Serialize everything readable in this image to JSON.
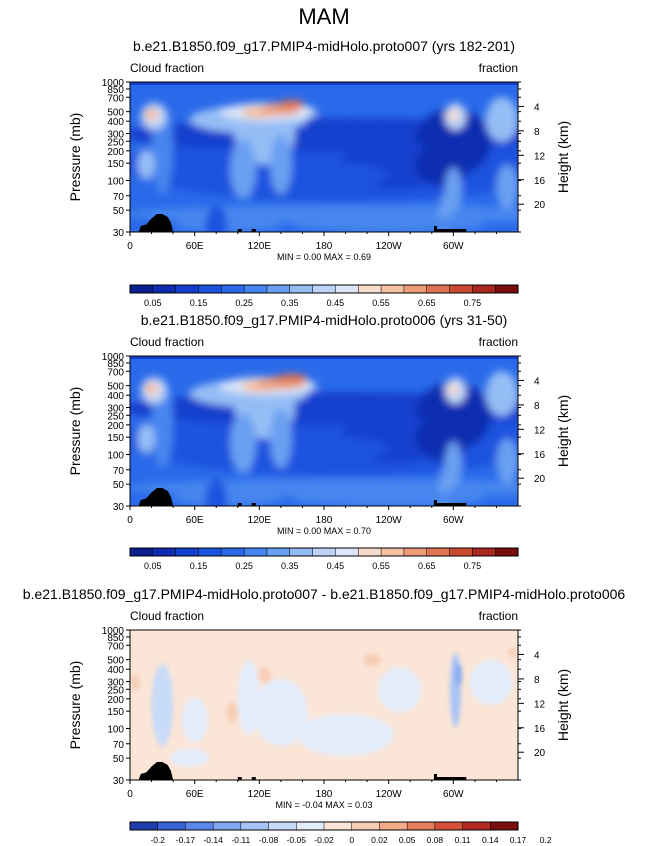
{
  "page_title": "MAM",
  "colors": {
    "cloud_levels": [
      "#0a1f8f",
      "#0d2db0",
      "#133fce",
      "#1b53df",
      "#2a6aea",
      "#4786ef",
      "#6aa0f2",
      "#95bdf5",
      "#bcd3f7",
      "#dbe6f8",
      "#f7dccb",
      "#f4c0a0",
      "#ee9b77",
      "#e17455",
      "#cc4a32",
      "#a9271d",
      "#7a0d0d"
    ],
    "diff_levels": [
      "#1f3fae",
      "#3a62d8",
      "#5c87ea",
      "#83a8f2",
      "#a7c3f6",
      "#c7dbf8",
      "#e2ecfb",
      "#fbe5d6",
      "#f7ccb3",
      "#f2aa88",
      "#e77f5e",
      "#d45239",
      "#b32a20",
      "#7a0d0d"
    ],
    "terrain": "#000000",
    "diff_background": "#fbe5d6"
  },
  "chart_data": [
    {
      "type": "heatmap",
      "title": "b.e21.B1850.f09_g17.PMIP4-midHolo.proto007 (yrs 182-201)",
      "left_label": "Cloud fraction",
      "right_label": "fraction",
      "ylabel": "Pressure (mb)",
      "ylabel_right": "Height (km)",
      "y_ticks": [
        "30",
        "50",
        "70",
        "100",
        "150",
        "200",
        "250",
        "300",
        "400",
        "500",
        "700",
        "850",
        "1000"
      ],
      "y_ticks_right": [
        "20",
        "16",
        "12",
        "8",
        "4"
      ],
      "x_ticks": [
        "0",
        "60E",
        "120E",
        "180",
        "120W",
        "60W"
      ],
      "stats": "MIN =   0.00  MAX =   0.69",
      "colorbar_labels": [
        "0.05",
        "0.15",
        "0.25",
        "0.35",
        "0.45",
        "0.55",
        "0.65",
        "0.75"
      ],
      "min": 0.0,
      "max": 0.69
    },
    {
      "type": "heatmap",
      "title": "b.e21.B1850.f09_g17.PMIP4-midHolo.proto006 (yrs 31-50)",
      "left_label": "Cloud fraction",
      "right_label": "fraction",
      "ylabel": "Pressure (mb)",
      "ylabel_right": "Height (km)",
      "y_ticks": [
        "30",
        "50",
        "70",
        "100",
        "150",
        "200",
        "250",
        "300",
        "400",
        "500",
        "700",
        "850",
        "1000"
      ],
      "y_ticks_right": [
        "20",
        "16",
        "12",
        "8",
        "4"
      ],
      "x_ticks": [
        "0",
        "60E",
        "120E",
        "180",
        "120W",
        "60W"
      ],
      "stats": "MIN =   0.00  MAX =   0.70",
      "colorbar_labels": [
        "0.05",
        "0.15",
        "0.25",
        "0.35",
        "0.45",
        "0.55",
        "0.65",
        "0.75"
      ],
      "min": 0.0,
      "max": 0.7
    },
    {
      "type": "heatmap",
      "title": "b.e21.B1850.f09_g17.PMIP4-midHolo.proto007 - b.e21.B1850.f09_g17.PMIP4-midHolo.proto006",
      "left_label": "Cloud fraction",
      "right_label": "fraction",
      "ylabel": "Pressure (mb)",
      "ylabel_right": "Height (km)",
      "y_ticks": [
        "30",
        "50",
        "70",
        "100",
        "150",
        "200",
        "250",
        "300",
        "400",
        "500",
        "700",
        "850",
        "1000"
      ],
      "y_ticks_right": [
        "20",
        "16",
        "12",
        "8",
        "4"
      ],
      "x_ticks": [
        "0",
        "60E",
        "120E",
        "180",
        "120W",
        "60W"
      ],
      "stats": "MIN =  -0.04  MAX =   0.03",
      "colorbar_labels": [
        "-0.2",
        "-0.17",
        "-0.14",
        "-0.11",
        "-0.08",
        "-0.05",
        "-0.02",
        "0",
        "0.02",
        "0.05",
        "0.08",
        "0.11",
        "0.14",
        "0.17",
        "0.2"
      ],
      "min": -0.04,
      "max": 0.03
    }
  ]
}
